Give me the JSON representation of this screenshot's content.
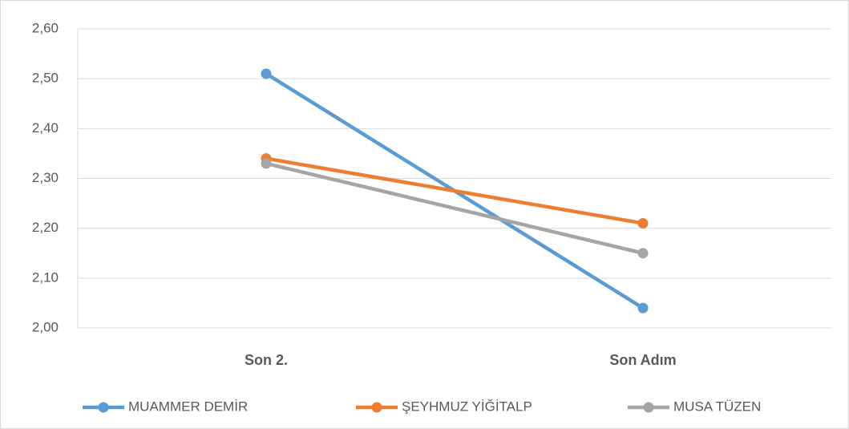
{
  "chart_data": {
    "type": "line",
    "categories": [
      "Son 2.",
      "Son Adım"
    ],
    "series": [
      {
        "name": "MUAMMER DEMİR",
        "color": "#5b9bd5",
        "values": [
          2.51,
          2.04
        ]
      },
      {
        "name": "ŞEYHMUZ YİĞİTALP",
        "color": "#ed7d31",
        "values": [
          2.34,
          2.21
        ]
      },
      {
        "name": "MUSA TÜZEN",
        "color": "#a5a5a5",
        "values": [
          2.33,
          2.15
        ]
      }
    ],
    "ylim": [
      2.0,
      2.6
    ],
    "yticks": [
      {
        "value": 2.0,
        "label": "2,00"
      },
      {
        "value": 2.1,
        "label": "2,10"
      },
      {
        "value": 2.2,
        "label": "2,20"
      },
      {
        "value": 2.3,
        "label": "2,30"
      },
      {
        "value": 2.4,
        "label": "2,40"
      },
      {
        "value": 2.5,
        "label": "2,50"
      },
      {
        "value": 2.6,
        "label": "2,60"
      }
    ],
    "grid": true,
    "legend": "bottom"
  }
}
